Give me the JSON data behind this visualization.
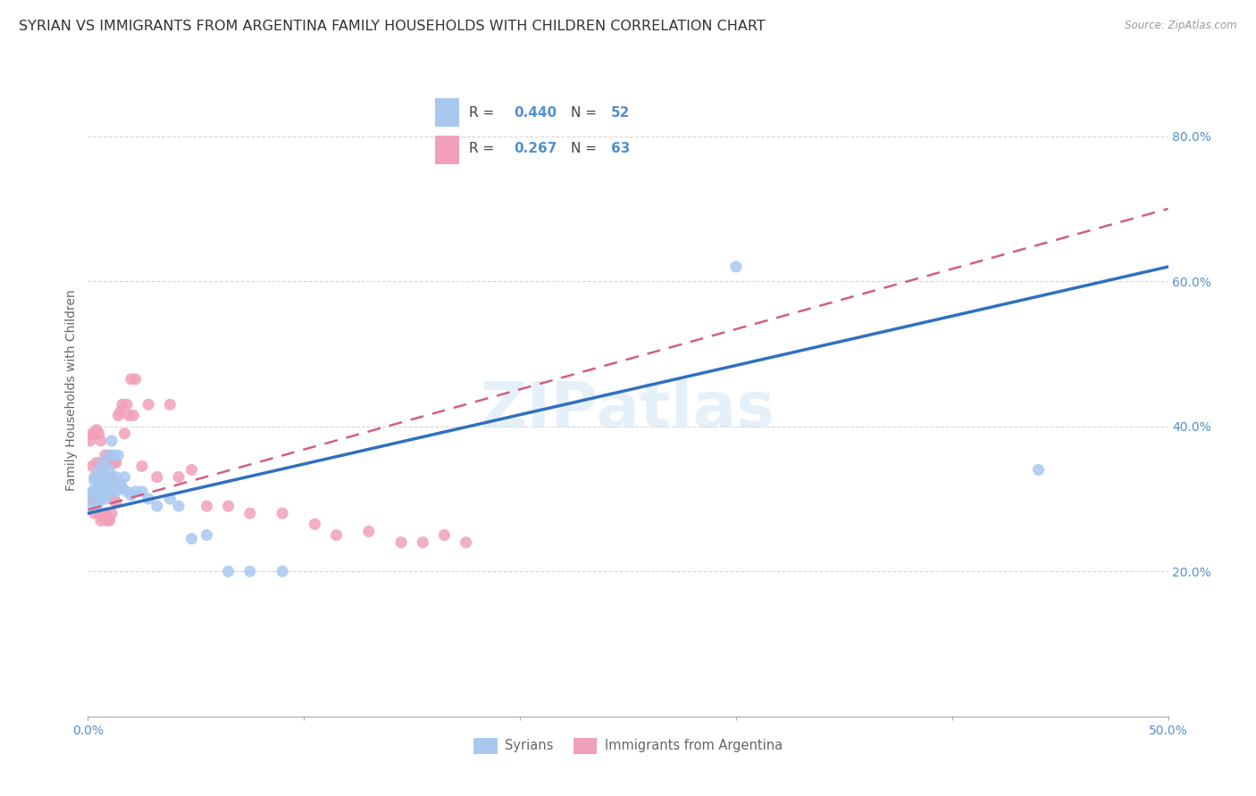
{
  "title": "SYRIAN VS IMMIGRANTS FROM ARGENTINA FAMILY HOUSEHOLDS WITH CHILDREN CORRELATION CHART",
  "source": "Source: ZipAtlas.com",
  "ylabel": "Family Households with Children",
  "xlim": [
    0.0,
    0.5
  ],
  "ylim": [
    0.0,
    0.9
  ],
  "x_tick_vals": [
    0.0,
    0.1,
    0.2,
    0.3,
    0.4,
    0.5
  ],
  "x_tick_labels": [
    "0.0%",
    "",
    "",
    "",
    "",
    "50.0%"
  ],
  "y_tick_vals": [
    0.2,
    0.4,
    0.6,
    0.8
  ],
  "y_tick_labels": [
    "20.0%",
    "40.0%",
    "60.0%",
    "80.0%"
  ],
  "watermark": "ZIPatlas",
  "legend_R1": "0.440",
  "legend_N1": "52",
  "legend_R2": "0.267",
  "legend_N2": "63",
  "legend_label1": "Syrians",
  "legend_label2": "Immigrants from Argentina",
  "color_blue": "#a8c8f0",
  "color_pink": "#f0a0b8",
  "color_line_blue": "#3070c0",
  "color_line_pink": "#d06080",
  "color_axis": "#5090d0",
  "background_color": "#ffffff",
  "grid_color": "#cccccc",
  "title_fontsize": 11.5,
  "axis_label_fontsize": 10,
  "tick_fontsize": 10,
  "watermark_fontsize": 52,
  "syrians_x": [
    0.001,
    0.002,
    0.002,
    0.003,
    0.003,
    0.003,
    0.004,
    0.004,
    0.004,
    0.005,
    0.005,
    0.005,
    0.005,
    0.006,
    0.006,
    0.006,
    0.007,
    0.007,
    0.007,
    0.008,
    0.008,
    0.008,
    0.009,
    0.009,
    0.01,
    0.01,
    0.01,
    0.011,
    0.011,
    0.012,
    0.012,
    0.013,
    0.013,
    0.014,
    0.015,
    0.016,
    0.017,
    0.018,
    0.02,
    0.022,
    0.025,
    0.028,
    0.032,
    0.038,
    0.042,
    0.048,
    0.055,
    0.065,
    0.075,
    0.09,
    0.44,
    0.3
  ],
  "syrians_y": [
    0.305,
    0.29,
    0.31,
    0.31,
    0.325,
    0.33,
    0.29,
    0.31,
    0.33,
    0.295,
    0.31,
    0.32,
    0.34,
    0.3,
    0.31,
    0.32,
    0.315,
    0.325,
    0.35,
    0.3,
    0.31,
    0.32,
    0.31,
    0.33,
    0.31,
    0.34,
    0.36,
    0.32,
    0.38,
    0.32,
    0.36,
    0.31,
    0.33,
    0.36,
    0.32,
    0.315,
    0.33,
    0.31,
    0.305,
    0.31,
    0.31,
    0.3,
    0.29,
    0.3,
    0.29,
    0.245,
    0.25,
    0.2,
    0.2,
    0.2,
    0.34,
    0.62
  ],
  "argentina_x": [
    0.001,
    0.001,
    0.002,
    0.002,
    0.002,
    0.003,
    0.003,
    0.003,
    0.004,
    0.004,
    0.004,
    0.005,
    0.005,
    0.005,
    0.005,
    0.006,
    0.006,
    0.006,
    0.006,
    0.007,
    0.007,
    0.007,
    0.008,
    0.008,
    0.008,
    0.009,
    0.009,
    0.009,
    0.01,
    0.01,
    0.01,
    0.011,
    0.011,
    0.012,
    0.012,
    0.013,
    0.013,
    0.014,
    0.015,
    0.016,
    0.017,
    0.018,
    0.019,
    0.02,
    0.021,
    0.022,
    0.025,
    0.028,
    0.032,
    0.038,
    0.042,
    0.048,
    0.055,
    0.065,
    0.075,
    0.09,
    0.105,
    0.115,
    0.13,
    0.145,
    0.155,
    0.165,
    0.175
  ],
  "argentina_y": [
    0.3,
    0.38,
    0.3,
    0.345,
    0.39,
    0.28,
    0.31,
    0.39,
    0.295,
    0.35,
    0.395,
    0.28,
    0.305,
    0.33,
    0.39,
    0.27,
    0.31,
    0.345,
    0.38,
    0.275,
    0.31,
    0.34,
    0.28,
    0.315,
    0.36,
    0.27,
    0.305,
    0.35,
    0.27,
    0.31,
    0.36,
    0.28,
    0.33,
    0.3,
    0.35,
    0.295,
    0.35,
    0.415,
    0.42,
    0.43,
    0.39,
    0.43,
    0.415,
    0.465,
    0.415,
    0.465,
    0.345,
    0.43,
    0.33,
    0.43,
    0.33,
    0.34,
    0.29,
    0.29,
    0.28,
    0.28,
    0.265,
    0.25,
    0.255,
    0.24,
    0.24,
    0.25,
    0.24
  ]
}
